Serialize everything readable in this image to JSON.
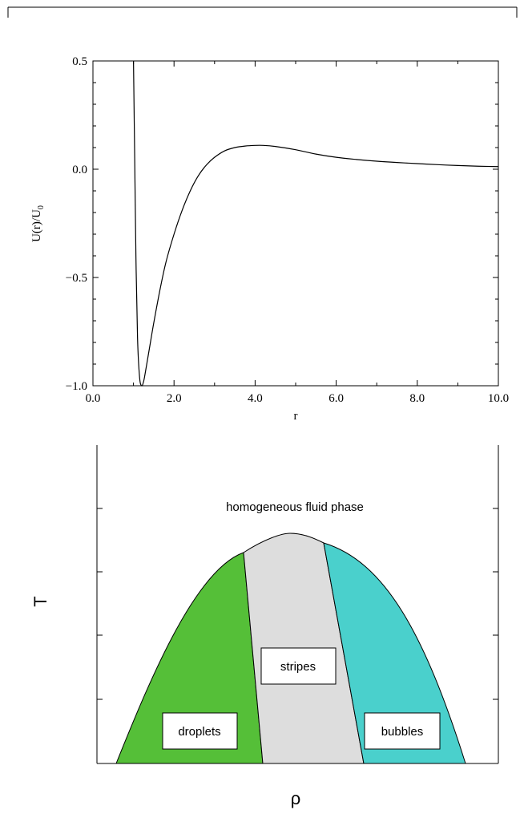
{
  "chart_data": [
    {
      "type": "line",
      "xlabel": "r",
      "ylabel": "U(r)/U",
      "ylabel_subscript": "0",
      "xlim": [
        0.0,
        10.0
      ],
      "ylim": [
        -1.0,
        0.5
      ],
      "x_ticks": [
        "0.0",
        "2.0",
        "4.0",
        "6.0",
        "8.0",
        "10.0"
      ],
      "y_ticks": [
        "−1.0",
        "−0.5",
        "0.0",
        "0.5"
      ],
      "series": [
        {
          "x": [
            1.0,
            1.03,
            1.06,
            1.1,
            1.15,
            1.2,
            1.25,
            1.3,
            1.4,
            1.5,
            1.65,
            1.8,
            2.0,
            2.2,
            2.4,
            2.6,
            2.8,
            3.0,
            3.25,
            3.5,
            3.75,
            4.0,
            4.2,
            4.5,
            5.0,
            5.5,
            6.0,
            6.5,
            7.0,
            7.5,
            8.0,
            8.5,
            9.0,
            9.5,
            10.0
          ],
          "y": [
            0.5,
            0.05,
            -0.4,
            -0.78,
            -0.96,
            -1.0,
            -0.98,
            -0.93,
            -0.82,
            -0.71,
            -0.56,
            -0.43,
            -0.3,
            -0.19,
            -0.1,
            -0.03,
            0.02,
            0.055,
            0.085,
            0.1,
            0.107,
            0.11,
            0.11,
            0.105,
            0.09,
            0.07,
            0.055,
            0.045,
            0.037,
            0.031,
            0.026,
            0.021,
            0.017,
            0.014,
            0.012
          ]
        }
      ]
    },
    {
      "type": "area",
      "xlabel": "ρ",
      "ylabel": "T",
      "regions": [
        {
          "label": "droplets",
          "color": "#55bf38"
        },
        {
          "label": "stripes",
          "color": "#dddddd"
        },
        {
          "label": "bubbles",
          "color": "#4ad0cc"
        }
      ],
      "annotation": "homogeneous fluid phase"
    }
  ]
}
